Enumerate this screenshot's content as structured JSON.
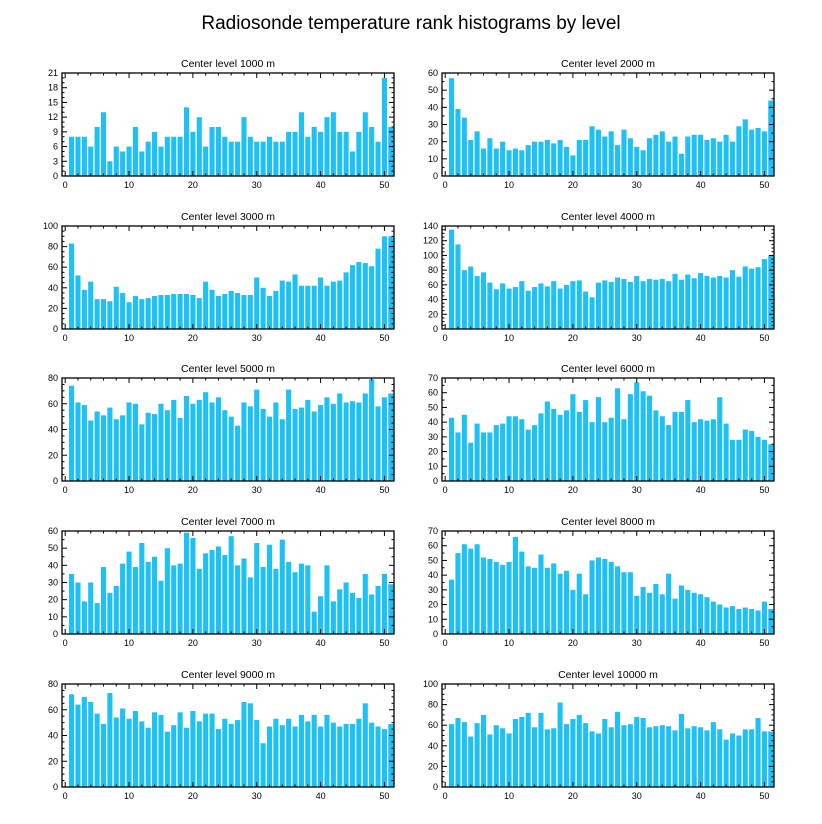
{
  "title": "Radiosonde temperature rank histograms by level",
  "colors": {
    "bar": "#1ec1f5",
    "background": "#ffffff",
    "axis": "#000000"
  },
  "chart_data": [
    {
      "type": "bar",
      "title": "Center level 1000 m",
      "xlim": [
        -0.5,
        51.5
      ],
      "ylim": [
        0,
        21
      ],
      "xticks": [
        0,
        10,
        20,
        30,
        40,
        50
      ],
      "yticks": [
        0,
        3,
        6,
        9,
        12,
        15,
        18,
        21
      ],
      "x": [
        1,
        2,
        3,
        4,
        5,
        6,
        7,
        8,
        9,
        10,
        11,
        12,
        13,
        14,
        15,
        16,
        17,
        18,
        19,
        20,
        21,
        22,
        23,
        24,
        25,
        26,
        27,
        28,
        29,
        30,
        31,
        32,
        33,
        34,
        35,
        36,
        37,
        38,
        39,
        40,
        41,
        42,
        43,
        44,
        45,
        46,
        47,
        48,
        49,
        50,
        51
      ],
      "values": [
        8,
        8,
        8,
        6,
        10,
        13,
        3,
        6,
        5,
        6,
        10,
        5,
        7,
        9,
        6,
        8,
        8,
        8,
        14,
        9,
        12,
        6,
        10,
        10,
        8,
        7,
        7,
        12,
        8,
        7,
        7,
        8,
        7,
        7,
        9,
        9,
        13,
        8,
        10,
        9,
        12,
        13,
        9,
        9,
        5,
        9,
        13,
        10,
        7,
        20,
        10
      ]
    },
    {
      "type": "bar",
      "title": "Center level 2000 m",
      "xlim": [
        -0.5,
        51.5
      ],
      "ylim": [
        0,
        60
      ],
      "xticks": [
        0,
        10,
        20,
        30,
        40,
        50
      ],
      "yticks": [
        0,
        10,
        20,
        30,
        40,
        50,
        60
      ],
      "x": [
        1,
        2,
        3,
        4,
        5,
        6,
        7,
        8,
        9,
        10,
        11,
        12,
        13,
        14,
        15,
        16,
        17,
        18,
        19,
        20,
        21,
        22,
        23,
        24,
        25,
        26,
        27,
        28,
        29,
        30,
        31,
        32,
        33,
        34,
        35,
        36,
        37,
        38,
        39,
        40,
        41,
        42,
        43,
        44,
        45,
        46,
        47,
        48,
        49,
        50,
        51
      ],
      "values": [
        57,
        39,
        34,
        21,
        26,
        16,
        22,
        16,
        20,
        15,
        16,
        15,
        18,
        20,
        20,
        21,
        19,
        21,
        17,
        12,
        21,
        21,
        29,
        27,
        23,
        26,
        18,
        27,
        22,
        17,
        15,
        22,
        24,
        26,
        20,
        23,
        13,
        23,
        24,
        24,
        21,
        22,
        20,
        24,
        20,
        29,
        33,
        27,
        28,
        26,
        44
      ]
    },
    {
      "type": "bar",
      "title": "Center level 3000 m",
      "xlim": [
        -0.5,
        51.5
      ],
      "ylim": [
        0,
        100
      ],
      "xticks": [
        0,
        10,
        20,
        30,
        40,
        50
      ],
      "yticks": [
        0,
        20,
        40,
        60,
        80,
        100
      ],
      "x": [
        1,
        2,
        3,
        4,
        5,
        6,
        7,
        8,
        9,
        10,
        11,
        12,
        13,
        14,
        15,
        16,
        17,
        18,
        19,
        20,
        21,
        22,
        23,
        24,
        25,
        26,
        27,
        28,
        29,
        30,
        31,
        32,
        33,
        34,
        35,
        36,
        37,
        38,
        39,
        40,
        41,
        42,
        43,
        44,
        45,
        46,
        47,
        48,
        49,
        50,
        51
      ],
      "values": [
        83,
        52,
        38,
        46,
        29,
        29,
        27,
        41,
        35,
        26,
        32,
        29,
        30,
        32,
        33,
        33,
        34,
        34,
        34,
        33,
        30,
        46,
        38,
        32,
        34,
        37,
        35,
        33,
        33,
        50,
        40,
        32,
        37,
        47,
        46,
        53,
        42,
        42,
        42,
        50,
        42,
        46,
        47,
        55,
        62,
        65,
        64,
        61,
        78,
        90,
        90
      ]
    },
    {
      "type": "bar",
      "title": "Center level 4000 m",
      "xlim": [
        -0.5,
        51.5
      ],
      "ylim": [
        0,
        140
      ],
      "xticks": [
        0,
        10,
        20,
        30,
        40,
        50
      ],
      "yticks": [
        0,
        20,
        40,
        60,
        80,
        100,
        120,
        140
      ],
      "x": [
        1,
        2,
        3,
        4,
        5,
        6,
        7,
        8,
        9,
        10,
        11,
        12,
        13,
        14,
        15,
        16,
        17,
        18,
        19,
        20,
        21,
        22,
        23,
        24,
        25,
        26,
        27,
        28,
        29,
        30,
        31,
        32,
        33,
        34,
        35,
        36,
        37,
        38,
        39,
        40,
        41,
        42,
        43,
        44,
        45,
        46,
        47,
        48,
        49,
        50,
        51
      ],
      "values": [
        135,
        115,
        80,
        85,
        72,
        77,
        63,
        54,
        62,
        55,
        57,
        65,
        52,
        57,
        62,
        58,
        65,
        55,
        60,
        65,
        66,
        51,
        43,
        63,
        66,
        64,
        70,
        68,
        64,
        72,
        65,
        68,
        67,
        68,
        65,
        75,
        67,
        74,
        69,
        76,
        72,
        70,
        72,
        70,
        80,
        71,
        85,
        82,
        84,
        95,
        100
      ]
    },
    {
      "type": "bar",
      "title": "Center level 5000 m",
      "xlim": [
        -0.5,
        51.5
      ],
      "ylim": [
        0,
        80
      ],
      "xticks": [
        0,
        10,
        20,
        30,
        40,
        50
      ],
      "yticks": [
        0,
        20,
        40,
        60,
        80
      ],
      "x": [
        1,
        2,
        3,
        4,
        5,
        6,
        7,
        8,
        9,
        10,
        11,
        12,
        13,
        14,
        15,
        16,
        17,
        18,
        19,
        20,
        21,
        22,
        23,
        24,
        25,
        26,
        27,
        28,
        29,
        30,
        31,
        32,
        33,
        34,
        35,
        36,
        37,
        38,
        39,
        40,
        41,
        42,
        43,
        44,
        45,
        46,
        47,
        48,
        49,
        50,
        51
      ],
      "values": [
        74,
        61,
        59,
        47,
        54,
        51,
        57,
        48,
        51,
        61,
        60,
        44,
        53,
        52,
        60,
        55,
        63,
        49,
        66,
        60,
        63,
        69,
        61,
        65,
        55,
        50,
        43,
        61,
        58,
        71,
        56,
        50,
        61,
        48,
        71,
        56,
        57,
        63,
        54,
        59,
        65,
        60,
        68,
        61,
        62,
        61,
        68,
        79,
        58,
        65,
        68
      ]
    },
    {
      "type": "bar",
      "title": "Center level 6000 m",
      "xlim": [
        -0.5,
        51.5
      ],
      "ylim": [
        0,
        70
      ],
      "xticks": [
        0,
        10,
        20,
        30,
        40,
        50
      ],
      "yticks": [
        0,
        10,
        20,
        30,
        40,
        50,
        60,
        70
      ],
      "x": [
        1,
        2,
        3,
        4,
        5,
        6,
        7,
        8,
        9,
        10,
        11,
        12,
        13,
        14,
        15,
        16,
        17,
        18,
        19,
        20,
        21,
        22,
        23,
        24,
        25,
        26,
        27,
        28,
        29,
        30,
        31,
        32,
        33,
        34,
        35,
        36,
        37,
        38,
        39,
        40,
        41,
        42,
        43,
        44,
        45,
        46,
        47,
        48,
        49,
        50,
        51
      ],
      "values": [
        43,
        33,
        45,
        26,
        39,
        33,
        33,
        38,
        39,
        44,
        44,
        42,
        35,
        38,
        46,
        54,
        49,
        45,
        48,
        59,
        47,
        55,
        40,
        57,
        40,
        43,
        63,
        42,
        59,
        67,
        61,
        58,
        48,
        44,
        38,
        47,
        47,
        55,
        40,
        42,
        41,
        42,
        57,
        39,
        28,
        28,
        35,
        34,
        30,
        28,
        25
      ]
    },
    {
      "type": "bar",
      "title": "Center level 7000 m",
      "xlim": [
        -0.5,
        51.5
      ],
      "ylim": [
        0,
        60
      ],
      "xticks": [
        0,
        10,
        20,
        30,
        40,
        50
      ],
      "yticks": [
        0,
        10,
        20,
        30,
        40,
        50,
        60
      ],
      "x": [
        1,
        2,
        3,
        4,
        5,
        6,
        7,
        8,
        9,
        10,
        11,
        12,
        13,
        14,
        15,
        16,
        17,
        18,
        19,
        20,
        21,
        22,
        23,
        24,
        25,
        26,
        27,
        28,
        29,
        30,
        31,
        32,
        33,
        34,
        35,
        36,
        37,
        38,
        39,
        40,
        41,
        42,
        43,
        44,
        45,
        46,
        47,
        48,
        49,
        50,
        51
      ],
      "values": [
        35,
        30,
        19,
        30,
        18,
        39,
        24,
        28,
        41,
        48,
        39,
        53,
        42,
        45,
        31,
        50,
        40,
        41,
        59,
        56,
        38,
        47,
        49,
        51,
        46,
        57,
        40,
        44,
        33,
        53,
        39,
        52,
        38,
        55,
        42,
        36,
        41,
        40,
        13,
        22,
        40,
        19,
        26,
        30,
        24,
        21,
        35,
        23,
        28,
        35,
        29
      ]
    },
    {
      "type": "bar",
      "title": "Center level 8000 m",
      "xlim": [
        -0.5,
        51.5
      ],
      "ylim": [
        0,
        70
      ],
      "xticks": [
        0,
        10,
        20,
        30,
        40,
        50
      ],
      "yticks": [
        0,
        10,
        20,
        30,
        40,
        50,
        60,
        70
      ],
      "x": [
        1,
        2,
        3,
        4,
        5,
        6,
        7,
        8,
        9,
        10,
        11,
        12,
        13,
        14,
        15,
        16,
        17,
        18,
        19,
        20,
        21,
        22,
        23,
        24,
        25,
        26,
        27,
        28,
        29,
        30,
        31,
        32,
        33,
        34,
        35,
        36,
        37,
        38,
        39,
        40,
        41,
        42,
        43,
        44,
        45,
        46,
        47,
        48,
        49,
        50,
        51
      ],
      "values": [
        37,
        55,
        61,
        58,
        61,
        52,
        51,
        49,
        47,
        49,
        66,
        56,
        46,
        45,
        54,
        45,
        48,
        41,
        43,
        30,
        41,
        27,
        50,
        52,
        51,
        49,
        46,
        42,
        42,
        26,
        32,
        28,
        34,
        27,
        41,
        24,
        33,
        30,
        28,
        27,
        25,
        22,
        20,
        18,
        19,
        17,
        18,
        17,
        16,
        22,
        17
      ]
    },
    {
      "type": "bar",
      "title": "Center level 9000 m",
      "xlim": [
        -0.5,
        51.5
      ],
      "ylim": [
        0,
        80
      ],
      "xticks": [
        0,
        10,
        20,
        30,
        40,
        50
      ],
      "yticks": [
        0,
        20,
        40,
        60,
        80
      ],
      "x": [
        1,
        2,
        3,
        4,
        5,
        6,
        7,
        8,
        9,
        10,
        11,
        12,
        13,
        14,
        15,
        16,
        17,
        18,
        19,
        20,
        21,
        22,
        23,
        24,
        25,
        26,
        27,
        28,
        29,
        30,
        31,
        32,
        33,
        34,
        35,
        36,
        37,
        38,
        39,
        40,
        41,
        42,
        43,
        44,
        45,
        46,
        47,
        48,
        49,
        50,
        51
      ],
      "values": [
        72,
        64,
        70,
        66,
        57,
        49,
        73,
        54,
        61,
        53,
        59,
        51,
        46,
        58,
        56,
        43,
        48,
        58,
        46,
        59,
        51,
        57,
        57,
        45,
        53,
        49,
        52,
        66,
        65,
        52,
        34,
        47,
        53,
        48,
        53,
        47,
        56,
        51,
        56,
        47,
        56,
        50,
        47,
        49,
        49,
        53,
        65,
        50,
        47,
        45,
        49
      ]
    },
    {
      "type": "bar",
      "title": "Center level 10000 m",
      "xlim": [
        -0.5,
        51.5
      ],
      "ylim": [
        0,
        100
      ],
      "xticks": [
        0,
        10,
        20,
        30,
        40,
        50
      ],
      "yticks": [
        0,
        20,
        40,
        60,
        80,
        100
      ],
      "x": [
        1,
        2,
        3,
        4,
        5,
        6,
        7,
        8,
        9,
        10,
        11,
        12,
        13,
        14,
        15,
        16,
        17,
        18,
        19,
        20,
        21,
        22,
        23,
        24,
        25,
        26,
        27,
        28,
        29,
        30,
        31,
        32,
        33,
        34,
        35,
        36,
        37,
        38,
        39,
        40,
        41,
        42,
        43,
        44,
        45,
        46,
        47,
        48,
        49,
        50,
        51
      ],
      "values": [
        61,
        67,
        63,
        49,
        62,
        70,
        51,
        60,
        57,
        52,
        66,
        68,
        72,
        58,
        72,
        56,
        57,
        82,
        61,
        66,
        70,
        62,
        54,
        52,
        66,
        58,
        73,
        60,
        61,
        68,
        67,
        58,
        59,
        60,
        59,
        55,
        71,
        57,
        59,
        58,
        55,
        63,
        56,
        46,
        52,
        50,
        56,
        56,
        67,
        54,
        54
      ]
    }
  ]
}
